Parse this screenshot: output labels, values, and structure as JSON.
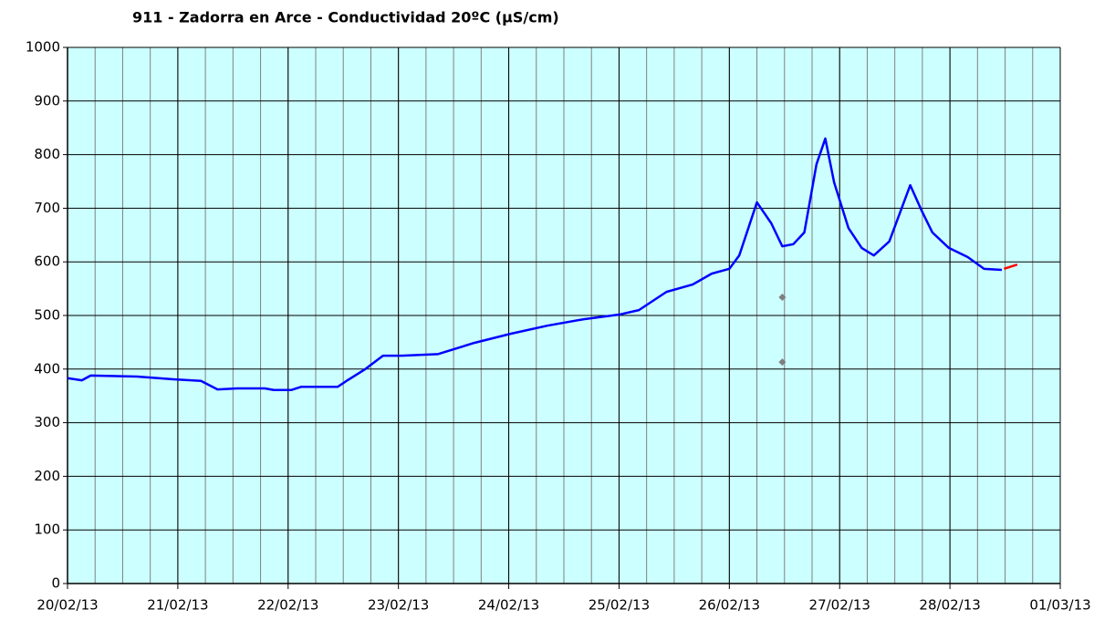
{
  "chart_data": {
    "type": "line",
    "title": "911 - Zadorra en Arce - Conductividad 20ºC (µS/cm)",
    "xlim": [
      0,
      9
    ],
    "xticks": [
      {
        "value": 0,
        "label": "20/02/13"
      },
      {
        "value": 1,
        "label": "21/02/13"
      },
      {
        "value": 2,
        "label": "22/02/13"
      },
      {
        "value": 3,
        "label": "23/02/13"
      },
      {
        "value": 4,
        "label": "24/02/13"
      },
      {
        "value": 5,
        "label": "25/02/13"
      },
      {
        "value": 6,
        "label": "26/02/13"
      },
      {
        "value": 7,
        "label": "27/02/13"
      },
      {
        "value": 8,
        "label": "28/02/13"
      },
      {
        "value": 9,
        "label": "01/03/13"
      }
    ],
    "minor_xstep": 0.25,
    "ylim": [
      0,
      1000
    ],
    "yticks": [
      0,
      100,
      200,
      300,
      400,
      500,
      600,
      700,
      800,
      900,
      1000
    ],
    "grid": true,
    "background": "#ccffff",
    "series": [
      {
        "color": "#0000ff",
        "mode": "line",
        "x": [
          0,
          0.13,
          0.21,
          0.63,
          0.96,
          1.21,
          1.36,
          1.54,
          1.79,
          1.87,
          2.03,
          2.12,
          2.45,
          2.53,
          2.7,
          2.86,
          3.03,
          3.36,
          3.69,
          4.02,
          4.35,
          4.68,
          5.01,
          5.18,
          5.43,
          5.67,
          5.84,
          6.0,
          6.09,
          6.25,
          6.38,
          6.48,
          6.58,
          6.68,
          6.79,
          6.87,
          6.95,
          7.08,
          7.2,
          7.31,
          7.45,
          7.64,
          7.74,
          7.84,
          7.99,
          8.16,
          8.31,
          8.47
        ],
        "values": [
          383,
          379,
          388,
          386,
          381,
          378,
          362,
          364,
          364,
          361,
          361,
          367,
          367,
          378,
          400,
          425,
          425,
          428,
          449,
          466,
          481,
          493,
          502,
          510,
          544,
          558,
          578,
          587,
          612,
          711,
          672,
          629,
          633,
          655,
          782,
          830,
          748,
          663,
          626,
          612,
          638,
          743,
          697,
          655,
          626,
          609,
          587,
          585
        ]
      },
      {
        "color": "#ff0000",
        "mode": "line",
        "x": [
          8.49,
          8.61
        ],
        "values": [
          587,
          595
        ]
      },
      {
        "color": "#808080",
        "mode": "markers",
        "x": [
          6.48,
          6.48
        ],
        "values": [
          534,
          413
        ]
      }
    ]
  }
}
